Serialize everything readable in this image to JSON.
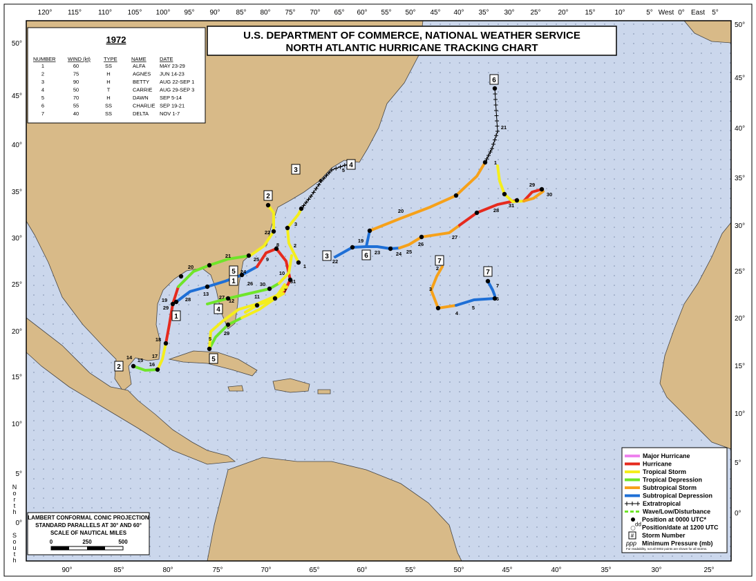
{
  "header": {
    "title_line1": "U.S. DEPARTMENT OF COMMERCE, NATIONAL WEATHER SERVICE",
    "title_line2": "NORTH ATLANTIC HURRICANE TRACKING CHART"
  },
  "season_table": {
    "year": "1972",
    "columns": [
      "NUMBER",
      "WIND (kt)",
      "TYPE",
      "NAME",
      "DATE"
    ],
    "rows": [
      [
        "1",
        "60",
        "SS",
        "ALFA",
        "MAY 23-29"
      ],
      [
        "2",
        "75",
        "H",
        "AGNES",
        "JUN 14-23"
      ],
      [
        "3",
        "90",
        "H",
        "BETTY",
        "AUG 22-SEP 1"
      ],
      [
        "4",
        "50",
        "T",
        "CARRIE",
        "AUG 29-SEP 3"
      ],
      [
        "5",
        "70",
        "H",
        "DAWN",
        "SEP 5-14"
      ],
      [
        "6",
        "55",
        "SS",
        "CHARLIE",
        "SEP 19-21"
      ],
      [
        "7",
        "40",
        "SS",
        "DELTA",
        "NOV 1-7"
      ]
    ]
  },
  "legend": {
    "items": [
      "Major Hurricane",
      "Hurricane",
      "Tropical Storm",
      "Tropical Depression",
      "Subtropical Storm",
      "Subtropical Depression",
      "Extratropical",
      "Wave/Low/Disturbance",
      "Position at 0000 UTC*",
      "Position/date at 1200 UTC",
      "Storm Number",
      "Minimum Pressure (mb)"
    ],
    "symbols": [
      "dd",
      "#",
      "ppp"
    ],
    "footnote": "For readability, not all 0002 points are shown for all storms."
  },
  "projection": {
    "lines": [
      "LAMBERT CONFORMAL CONIC PROJECTION",
      "STANDARD PARALLELS AT 30° AND 60°",
      "SCALE OF NAUTICAL MILES"
    ],
    "scale_ticks": [
      "0",
      "250",
      "500"
    ]
  },
  "top_lon_labels": [
    "120°",
    "115°",
    "110°",
    "105°",
    "100°",
    "95°",
    "90°",
    "85°",
    "80°",
    "75°",
    "70°",
    "65°",
    "60°",
    "55°",
    "50°",
    "45°",
    "40°",
    "35°",
    "30°",
    "25°",
    "20°",
    "15°",
    "10°",
    "5°",
    "West",
    "0°",
    "East",
    "5°"
  ],
  "bottom_lon_labels": [
    "90°",
    "85°",
    "80°",
    "75°",
    "70°",
    "65°",
    "60°",
    "55°",
    "50°",
    "45°",
    "40°",
    "35°",
    "30°",
    "25°"
  ],
  "left_lat_labels": [
    "50°",
    "45°",
    "40°",
    "35°",
    "30°",
    "25°",
    "20°",
    "15°",
    "10°",
    "5°",
    "0°"
  ],
  "right_lat_labels": [
    "50°",
    "45°",
    "40°",
    "35°",
    "30°",
    "25°",
    "20°",
    "15°",
    "10°",
    "5°",
    "0°"
  ],
  "side_text": [
    "North",
    "South"
  ],
  "storm_markers": [
    "2",
    "1",
    "1",
    "5",
    "5",
    "4",
    "4",
    "2",
    "3",
    "6",
    "6",
    "3",
    "7",
    "7"
  ],
  "track_labels": [
    "14",
    "15",
    "16",
    "17",
    "18",
    "19",
    "29",
    "20",
    "21",
    "22",
    "28",
    "13",
    "27",
    "12",
    "11",
    "26",
    "24",
    "25",
    "8",
    "9",
    "10",
    "31",
    "7",
    "2",
    "3",
    "1",
    "30",
    "29",
    "5",
    "4",
    "5",
    "22",
    "19",
    "23",
    "24",
    "25",
    "26",
    "27",
    "20",
    "28",
    "29",
    "30",
    "31",
    "1",
    "21",
    "2",
    "3",
    "4",
    "5",
    "6",
    "7"
  ]
}
